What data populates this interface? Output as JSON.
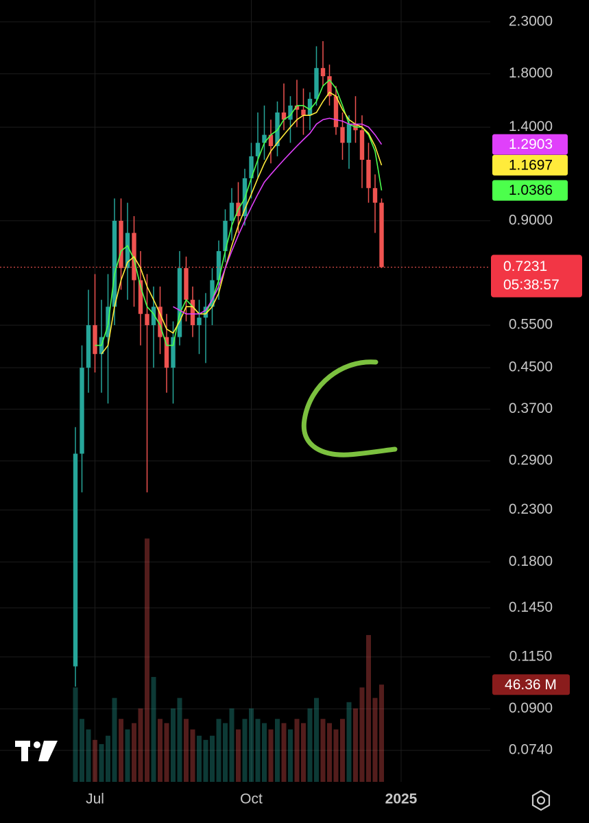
{
  "chart_data": {
    "type": "candlestick",
    "log_scale": true,
    "grid": true,
    "up_color": "#26a69a",
    "down_color": "#ef5350",
    "categories": [
      null,
      null,
      null,
      "Jul",
      null,
      null,
      null,
      null,
      null,
      null,
      null,
      null,
      null,
      null,
      null,
      null,
      null,
      null,
      null,
      null,
      null,
      null,
      null,
      null,
      null,
      null,
      null,
      "Oct",
      null,
      null,
      null,
      null,
      null,
      null,
      null,
      null,
      null,
      null,
      null,
      null,
      null,
      null,
      null,
      null,
      null,
      null,
      null,
      null,
      null,
      null,
      "2025"
    ],
    "open": [
      0.11,
      0.3,
      0.45,
      0.55,
      0.48,
      0.52,
      0.6,
      0.9,
      0.72,
      0.85,
      0.68,
      0.58,
      0.55,
      0.6,
      0.52,
      0.45,
      0.52,
      0.72,
      0.62,
      0.55,
      0.57,
      0.6,
      0.68,
      0.78,
      0.9,
      0.98,
      0.92,
      1.1,
      1.22,
      1.3,
      1.35,
      1.28,
      1.5,
      1.45,
      1.55,
      1.52,
      1.48,
      1.6,
      1.85,
      1.78,
      1.62,
      1.4,
      1.3,
      1.42,
      1.38,
      1.2,
      1.05,
      0.98,
      null,
      null,
      null
    ],
    "high": [
      0.34,
      0.5,
      0.65,
      0.7,
      0.62,
      0.7,
      1.0,
      1.0,
      0.98,
      0.92,
      0.78,
      0.7,
      0.66,
      0.66,
      0.58,
      0.56,
      0.78,
      0.76,
      0.66,
      0.62,
      0.64,
      0.72,
      0.82,
      0.95,
      1.05,
      1.08,
      1.15,
      1.3,
      1.5,
      1.55,
      1.45,
      1.58,
      1.72,
      1.62,
      1.75,
      1.68,
      1.65,
      2.05,
      2.1,
      1.88,
      1.7,
      1.5,
      1.48,
      1.62,
      1.48,
      1.3,
      1.12,
      1.0,
      null,
      null,
      null
    ],
    "low": [
      0.1,
      0.25,
      0.4,
      0.44,
      0.4,
      0.38,
      0.55,
      0.65,
      0.62,
      0.6,
      0.5,
      0.25,
      0.45,
      0.48,
      0.4,
      0.38,
      0.5,
      0.56,
      0.52,
      0.48,
      0.46,
      0.55,
      0.62,
      0.74,
      0.82,
      0.85,
      0.88,
      1.0,
      1.1,
      1.2,
      1.18,
      1.22,
      1.38,
      1.3,
      1.4,
      1.35,
      1.38,
      1.55,
      1.7,
      1.55,
      1.35,
      1.2,
      1.15,
      1.3,
      1.05,
      0.98,
      0.85,
      0.72,
      null,
      null,
      null
    ],
    "close": [
      0.3,
      0.45,
      0.55,
      0.48,
      0.52,
      0.6,
      0.9,
      0.72,
      0.85,
      0.68,
      0.58,
      0.55,
      0.6,
      0.52,
      0.45,
      0.52,
      0.72,
      0.62,
      0.55,
      0.57,
      0.6,
      0.68,
      0.78,
      0.9,
      0.98,
      0.92,
      1.1,
      1.22,
      1.3,
      1.35,
      1.28,
      1.5,
      1.45,
      1.55,
      1.52,
      1.48,
      1.6,
      1.85,
      1.78,
      1.62,
      1.4,
      1.3,
      1.42,
      1.38,
      1.2,
      1.05,
      0.98,
      0.7231,
      null,
      null,
      null
    ],
    "countdown": "05:38:57",
    "series": [
      {
        "color": "#4cff4c",
        "values": [
          null,
          null,
          null,
          0.5,
          0.5,
          0.55,
          0.7,
          0.78,
          0.8,
          0.75,
          0.66,
          0.6,
          0.58,
          0.55,
          0.5,
          0.5,
          0.58,
          0.62,
          0.6,
          0.58,
          0.58,
          0.62,
          0.68,
          0.78,
          0.88,
          0.95,
          1.0,
          1.1,
          1.2,
          1.3,
          1.35,
          1.38,
          1.45,
          1.48,
          1.55,
          1.55,
          1.52,
          1.58,
          1.7,
          1.75,
          1.68,
          1.55,
          1.42,
          1.4,
          1.4,
          1.35,
          1.25,
          1.0386,
          null,
          null,
          null
        ]
      },
      {
        "color": "#ffeb3b",
        "values": [
          null,
          null,
          null,
          null,
          0.48,
          0.5,
          0.6,
          0.68,
          0.74,
          0.76,
          0.72,
          0.66,
          0.62,
          0.58,
          0.54,
          0.53,
          0.56,
          0.6,
          0.6,
          0.58,
          0.58,
          0.6,
          0.64,
          0.72,
          0.8,
          0.88,
          0.95,
          1.02,
          1.1,
          1.18,
          1.25,
          1.3,
          1.35,
          1.4,
          1.45,
          1.48,
          1.48,
          1.5,
          1.58,
          1.65,
          1.62,
          1.52,
          1.45,
          1.42,
          1.4,
          1.36,
          1.28,
          1.1697,
          null,
          null,
          null
        ]
      },
      {
        "color": "#e040fb",
        "values": [
          null,
          null,
          null,
          null,
          null,
          null,
          null,
          null,
          null,
          null,
          null,
          null,
          null,
          null,
          null,
          0.6,
          0.59,
          0.58,
          0.58,
          0.58,
          0.59,
          0.62,
          0.66,
          0.72,
          0.78,
          0.84,
          0.9,
          0.96,
          1.02,
          1.08,
          1.12,
          1.16,
          1.2,
          1.24,
          1.28,
          1.32,
          1.36,
          1.42,
          1.45,
          1.46,
          1.45,
          1.44,
          1.42,
          1.42,
          1.42,
          1.4,
          1.35,
          1.2903,
          null,
          null,
          null
        ]
      }
    ],
    "volume": {
      "ylim": [
        0,
        120
      ],
      "values": [
        45,
        30,
        25,
        20,
        18,
        22,
        40,
        30,
        25,
        28,
        35,
        116,
        50,
        30,
        28,
        35,
        40,
        30,
        25,
        22,
        20,
        22,
        30,
        28,
        35,
        25,
        30,
        35,
        30,
        28,
        25,
        30,
        28,
        25,
        30,
        28,
        35,
        40,
        30,
        28,
        25,
        30,
        38,
        35,
        45,
        70,
        40,
        46.36,
        null,
        null,
        null
      ],
      "value_labels": [
        null,
        null,
        null,
        null,
        null,
        null,
        null,
        null,
        null,
        null,
        null,
        null,
        null,
        null,
        null,
        null,
        null,
        null,
        null,
        null,
        null,
        null,
        null,
        null,
        null,
        null,
        null,
        null,
        null,
        null,
        null,
        null,
        null,
        null,
        null,
        null,
        null,
        null,
        null,
        null,
        null,
        null,
        null,
        null,
        null,
        null,
        null,
        "46.36 M",
        null,
        null,
        null
      ]
    },
    "ylim": [
      0.0638,
      2.55
    ],
    "yticks": [
      {
        "value": 2.3,
        "label": "2.3000"
      },
      {
        "value": 1.8,
        "label": "1.8000"
      },
      {
        "value": 1.4,
        "label": "1.4000"
      },
      {
        "value": 0.9,
        "label": "0.9000"
      },
      {
        "value": 0.55,
        "label": "0.5500"
      },
      {
        "value": 0.45,
        "label": "0.4500"
      },
      {
        "value": 0.37,
        "label": "0.3700"
      },
      {
        "value": 0.29,
        "label": "0.2900"
      },
      {
        "value": 0.23,
        "label": "0.2300"
      },
      {
        "value": 0.18,
        "label": "0.1800"
      },
      {
        "value": 0.145,
        "label": "0.1450"
      },
      {
        "value": 0.115,
        "label": "0.1150"
      },
      {
        "value": 0.09,
        "label": "0.0900"
      },
      {
        "value": 0.074,
        "label": "0.0740"
      }
    ]
  }
}
